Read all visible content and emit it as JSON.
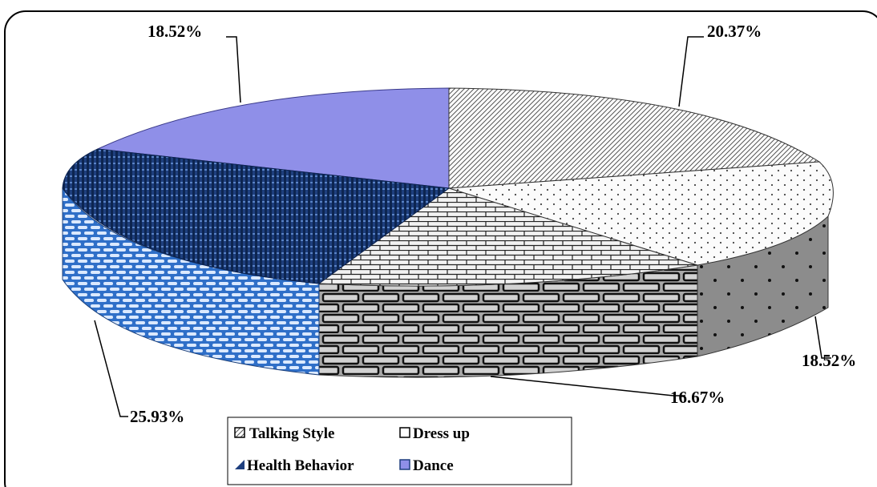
{
  "chart_data": {
    "type": "pie",
    "variant": "3d-exploded-style",
    "slices": [
      {
        "name": "Talking Style",
        "value": 20.37,
        "label": "20.37%"
      },
      {
        "name": "Dress up",
        "value": 18.52,
        "label": "18.52%"
      },
      {
        "name": "",
        "value": 16.67,
        "label": "16.67%"
      },
      {
        "name": "Health Behavior",
        "value": 25.93,
        "label": "25.93%"
      },
      {
        "name": "Dance",
        "value": 18.52,
        "label": "18.52%"
      }
    ],
    "legend": {
      "placement": "bottom-center",
      "entries": [
        "Talking Style",
        "Dress up",
        "Health Behavior",
        "Dance"
      ]
    },
    "colors": {
      "dance": "#8f8fe8",
      "health_behavior": "#1e3f7e",
      "health_side": "#3f7fd0",
      "gray_side": "#8a8a8a"
    }
  }
}
